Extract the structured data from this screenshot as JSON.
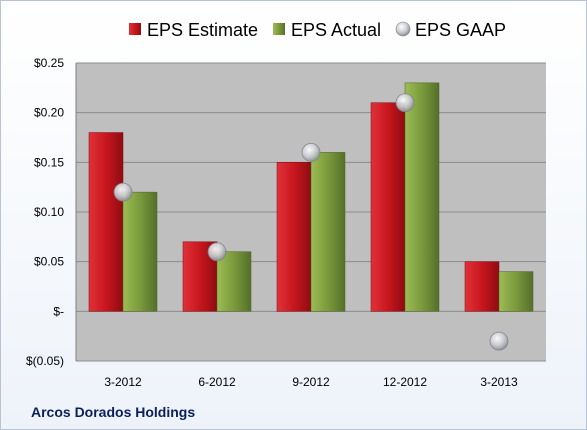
{
  "company_label": "Arcos Dorados Holdings",
  "colors": {
    "estimate": "#c8161d",
    "actual": "#7a9a3c",
    "gaap": "#b9bcc2",
    "plot_bg": "#bfbfbf"
  },
  "chart_data": {
    "type": "bar",
    "title": "",
    "xlabel": "",
    "ylabel": "",
    "categories": [
      "3-2012",
      "6-2012",
      "9-2012",
      "12-2012",
      "3-2013"
    ],
    "series": [
      {
        "name": "EPS Estimate",
        "kind": "bar",
        "values": [
          0.18,
          0.07,
          0.15,
          0.21,
          0.05
        ]
      },
      {
        "name": "EPS Actual",
        "kind": "bar",
        "values": [
          0.12,
          0.06,
          0.16,
          0.23,
          0.04
        ]
      },
      {
        "name": "EPS GAAP",
        "kind": "marker",
        "values": [
          0.12,
          0.06,
          0.16,
          0.21,
          -0.03
        ]
      }
    ],
    "ylim": [
      -0.05,
      0.25
    ],
    "yticks": [
      -0.05,
      0,
      0.05,
      0.1,
      0.15,
      0.2,
      0.25
    ],
    "ytick_labels": [
      "$(0.05)",
      "$-",
      "$0.05",
      "$0.10",
      "$0.15",
      "$0.20",
      "$0.25"
    ],
    "grid": true,
    "legend_position": "top"
  }
}
